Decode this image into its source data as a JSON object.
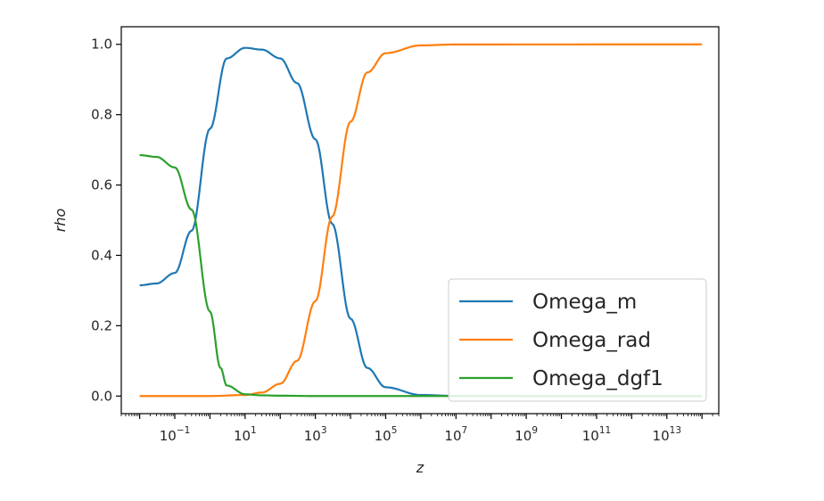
{
  "chart_data": {
    "type": "line",
    "xlabel": "z",
    "ylabel": "rho",
    "xscale": "log",
    "xlim": [
      0.003,
      300000000000000.0
    ],
    "ylim": [
      -0.05,
      1.05
    ],
    "yticks": [
      "0.0",
      "0.2",
      "0.4",
      "0.6",
      "0.8",
      "1.0"
    ],
    "xticks": [
      {
        "base": "10",
        "exp": "−1",
        "value": 0.1
      },
      {
        "base": "10",
        "exp": "1",
        "value": 10
      },
      {
        "base": "10",
        "exp": "3",
        "value": 1000
      },
      {
        "base": "10",
        "exp": "5",
        "value": 100000
      },
      {
        "base": "10",
        "exp": "7",
        "value": 10000000
      },
      {
        "base": "10",
        "exp": "9",
        "value": 1000000000
      },
      {
        "base": "10",
        "exp": "11",
        "value": 100000000000
      },
      {
        "base": "10",
        "exp": "13",
        "value": 10000000000000
      }
    ],
    "grid": false,
    "legend_position": "lower-right",
    "series": [
      {
        "name": "Omega_m",
        "color": "#1f77b4",
        "x": [
          0.01,
          0.03,
          0.1,
          0.3,
          1,
          3,
          10,
          30,
          100,
          300,
          1000,
          3000,
          10000,
          30000,
          100000,
          1000000,
          10000000,
          100000000000000
        ],
        "y": [
          0.315,
          0.32,
          0.35,
          0.47,
          0.76,
          0.96,
          0.99,
          0.985,
          0.96,
          0.89,
          0.73,
          0.49,
          0.22,
          0.08,
          0.025,
          0.003,
          0.0003,
          0.0
        ]
      },
      {
        "name": "Omega_rad",
        "color": "#ff7f0e",
        "x": [
          0.01,
          0.1,
          1,
          10,
          30,
          100,
          300,
          1000,
          3000,
          10000,
          30000,
          100000,
          1000000,
          10000000,
          100000000000000
        ],
        "y": [
          0.0,
          0.0,
          0.0001,
          0.003,
          0.01,
          0.035,
          0.1,
          0.27,
          0.51,
          0.78,
          0.92,
          0.975,
          0.997,
          0.9997,
          1.0
        ]
      },
      {
        "name": "Omega_dgf1",
        "color": "#2ca02c",
        "x": [
          0.01,
          0.03,
          0.1,
          0.3,
          1,
          2,
          3,
          10,
          30,
          100,
          1000,
          100000000000000
        ],
        "y": [
          0.685,
          0.68,
          0.65,
          0.53,
          0.24,
          0.08,
          0.03,
          0.005,
          0.002,
          0.001,
          0.0,
          0.0
        ]
      }
    ]
  }
}
